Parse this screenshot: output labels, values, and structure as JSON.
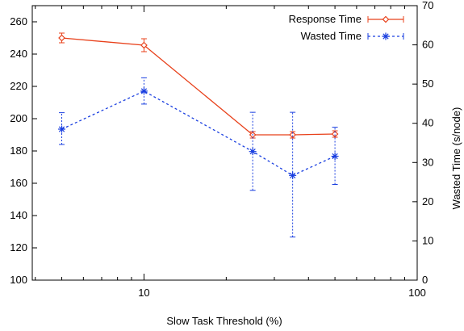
{
  "chart_data": {
    "type": "line",
    "xlabel": "Slow Task Threshold (%)",
    "ylabel_right": "Wasted Time (s/node)",
    "xscale": "log",
    "xlim": [
      3.9,
      100
    ],
    "x_ticks": [
      10,
      100
    ],
    "ylim_left": [
      100,
      270
    ],
    "y_ticks_left": [
      100,
      120,
      140,
      160,
      180,
      200,
      220,
      240,
      260
    ],
    "ylim_right": [
      0,
      70
    ],
    "y_ticks_right": [
      0,
      10,
      20,
      30,
      40,
      50,
      60,
      70
    ],
    "legend_position": "top-right",
    "grid": false,
    "series": [
      {
        "name": "Response Time",
        "axis": "left",
        "color": "#e8401a",
        "line": "solid",
        "marker": "diamond",
        "points": [
          {
            "x": 5,
            "y": 250,
            "err_low": 247,
            "err_high": 253
          },
          {
            "x": 10,
            "y": 245.5,
            "err_low": 241.5,
            "err_high": 249.5
          },
          {
            "x": 25,
            "y": 190,
            "err_low": 188,
            "err_high": 192
          },
          {
            "x": 35,
            "y": 190,
            "err_low": 188,
            "err_high": 192
          },
          {
            "x": 50,
            "y": 190.5,
            "err_low": 188.5,
            "err_high": 192.5
          }
        ]
      },
      {
        "name": "Wasted Time",
        "axis": "right",
        "color": "#1a3fe0",
        "line": "dotted",
        "marker": "star",
        "points": [
          {
            "x": 5,
            "y": 38.5,
            "err_low": 34.6,
            "err_high": 42.7
          },
          {
            "x": 10,
            "y": 48.2,
            "err_low": 44.9,
            "err_high": 51.6
          },
          {
            "x": 25,
            "y": 32.8,
            "err_low": 22.9,
            "err_high": 42.8
          },
          {
            "x": 35,
            "y": 26.7,
            "err_low": 11,
            "err_high": 42.8
          },
          {
            "x": 50,
            "y": 31.6,
            "err_low": 24.4,
            "err_high": 39
          }
        ]
      }
    ]
  }
}
